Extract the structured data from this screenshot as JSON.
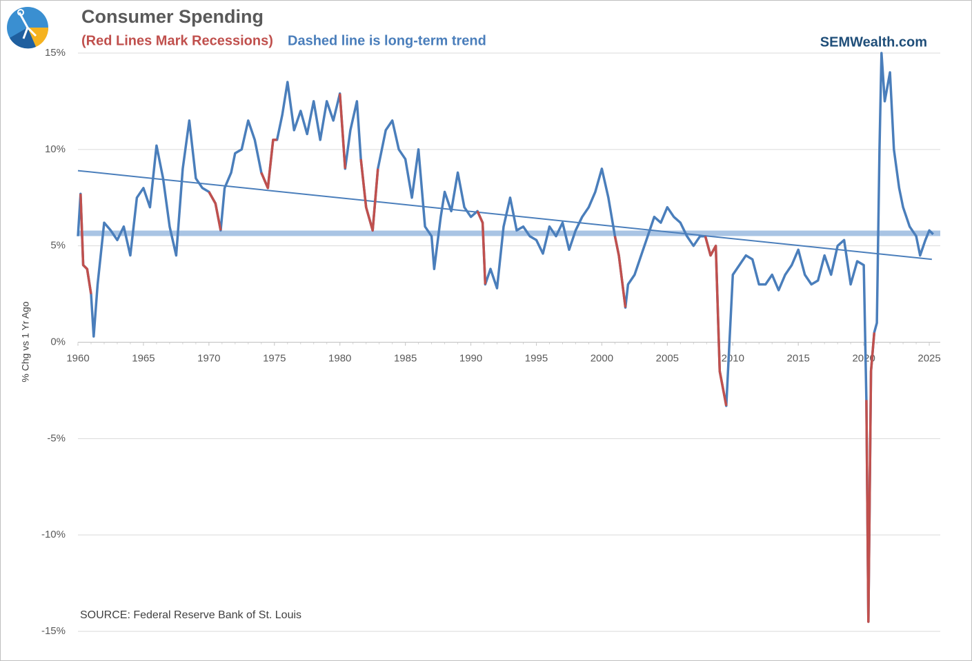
{
  "chart_data": {
    "type": "line",
    "title": "Consumer Spending",
    "subtitle_red": "(Red Lines Mark Recessions)",
    "subtitle_blue": "Dashed line is long-term trend",
    "brand": "SEMWealth.com",
    "ylabel": "% Chg vs 1 Yr Ago",
    "source": "SOURCE:  Federal Reserve Bank of St. Louis",
    "xlim": [
      1960,
      2025.84
    ],
    "xticks": [
      1960,
      1965,
      1970,
      1975,
      1980,
      1985,
      1990,
      1995,
      2000,
      2005,
      2010,
      2015,
      2020,
      2025
    ],
    "ylim": [
      -15,
      15
    ],
    "yticks": [
      {
        "value": 15,
        "label": "15%"
      },
      {
        "value": 10,
        "label": "10%"
      },
      {
        "value": 5,
        "label": "5%"
      },
      {
        "value": 0,
        "label": "0%"
      },
      {
        "value": -5,
        "label": "-5%"
      },
      {
        "value": -10,
        "label": "-10%"
      },
      {
        "value": -15,
        "label": "-15%"
      }
    ],
    "grid": true,
    "x": [
      1960.0,
      1960.2,
      1960.4,
      1960.7,
      1961.0,
      1961.2,
      1961.5,
      1962.0,
      1962.5,
      1963.0,
      1963.5,
      1964.0,
      1964.5,
      1965.0,
      1965.5,
      1966.0,
      1966.5,
      1967.0,
      1967.5,
      1968.0,
      1968.5,
      1969.0,
      1969.5,
      1970.0,
      1970.5,
      1970.9,
      1971.2,
      1971.7,
      1972.0,
      1972.5,
      1973.0,
      1973.5,
      1974.0,
      1974.5,
      1974.9,
      1975.2,
      1975.6,
      1976.0,
      1976.5,
      1977.0,
      1977.5,
      1978.0,
      1978.5,
      1979.0,
      1979.5,
      1980.0,
      1980.4,
      1980.8,
      1981.3,
      1981.6,
      1982.0,
      1982.5,
      1982.9,
      1983.5,
      1984.0,
      1984.5,
      1985.0,
      1985.5,
      1986.0,
      1986.5,
      1987.0,
      1987.2,
      1987.7,
      1988.0,
      1988.5,
      1989.0,
      1989.5,
      1990.0,
      1990.5,
      1990.9,
      1991.1,
      1991.5,
      1992.0,
      1992.5,
      1993.0,
      1993.5,
      1994.0,
      1994.5,
      1995.0,
      1995.5,
      1996.0,
      1996.5,
      1997.0,
      1997.5,
      1998.0,
      1998.5,
      1999.0,
      1999.5,
      2000.0,
      2000.5,
      2001.0,
      2001.3,
      2001.8,
      2002.0,
      2002.5,
      2003.0,
      2003.5,
      2004.0,
      2004.5,
      2005.0,
      2005.5,
      2006.0,
      2006.5,
      2007.0,
      2007.5,
      2007.9,
      2008.3,
      2008.7,
      2009.0,
      2009.5,
      2010.0,
      2010.5,
      2011.0,
      2011.5,
      2012.0,
      2012.5,
      2013.0,
      2013.5,
      2014.0,
      2014.5,
      2015.0,
      2015.5,
      2016.0,
      2016.5,
      2017.0,
      2017.5,
      2018.0,
      2018.5,
      2019.0,
      2019.5,
      2020.0,
      2020.2,
      2020.35,
      2020.55,
      2020.8,
      2021.0,
      2021.2,
      2021.35,
      2021.6,
      2022.0,
      2022.3,
      2022.7,
      2023.0,
      2023.5,
      2024.0,
      2024.3,
      2024.7,
      2025.0,
      2025.3
    ],
    "series": [
      {
        "color": "#4a7ebb",
        "values": [
          5.5,
          7.7,
          4.0,
          3.8,
          2.5,
          0.3,
          3.0,
          6.2,
          5.8,
          5.3,
          6.0,
          4.5,
          7.5,
          8.0,
          7.0,
          10.2,
          8.5,
          6.0,
          4.5,
          9.0,
          11.5,
          8.5,
          8.0,
          7.8,
          7.2,
          5.8,
          8.0,
          8.8,
          9.8,
          10.0,
          11.5,
          10.5,
          8.8,
          8.0,
          10.5,
          10.5,
          11.8,
          13.5,
          11.0,
          12.0,
          10.8,
          12.5,
          10.5,
          12.5,
          11.5,
          12.9,
          9.0,
          11.0,
          12.5,
          9.5,
          7.0,
          5.8,
          9.0,
          11.0,
          11.5,
          10.0,
          9.5,
          7.5,
          10.0,
          6.0,
          5.5,
          3.8,
          6.5,
          7.8,
          6.8,
          8.8,
          7.0,
          6.5,
          6.8,
          6.2,
          3.0,
          3.8,
          2.8,
          6.0,
          7.5,
          5.8,
          6.0,
          5.5,
          5.3,
          4.6,
          6.0,
          5.5,
          6.2,
          4.8,
          5.8,
          6.5,
          7.0,
          7.8,
          9.0,
          7.5,
          5.5,
          4.5,
          1.8,
          3.0,
          3.5,
          4.5,
          5.5,
          6.5,
          6.2,
          7.0,
          6.5,
          6.2,
          5.5,
          5.0,
          5.5,
          5.5,
          4.5,
          5.0,
          -1.5,
          -3.3,
          3.5,
          4.0,
          4.5,
          4.3,
          3.0,
          3.0,
          3.5,
          2.7,
          3.5,
          4.0,
          4.8,
          3.5,
          3.0,
          3.2,
          4.5,
          3.5,
          5.0,
          5.3,
          3.0,
          4.2,
          4.0,
          -3.0,
          -14.5,
          -1.5,
          0.5,
          1.0,
          10.0,
          15.0,
          12.5,
          14.0,
          10.0,
          8.0,
          7.0,
          6.0,
          5.5,
          4.5,
          5.3,
          5.8,
          5.6
        ]
      },
      {
        "color": "#c0504d",
        "values": [
          null,
          7.7,
          4.0,
          3.8,
          2.5,
          null,
          null,
          null,
          null,
          null,
          null,
          null,
          null,
          null,
          null,
          null,
          null,
          null,
          null,
          null,
          null,
          null,
          null,
          7.8,
          7.2,
          5.8,
          null,
          null,
          null,
          null,
          null,
          null,
          8.8,
          8.0,
          10.5,
          10.5,
          null,
          null,
          null,
          null,
          null,
          null,
          null,
          null,
          null,
          12.9,
          9.0,
          null,
          null,
          9.5,
          7.0,
          5.8,
          9.0,
          null,
          null,
          null,
          null,
          null,
          null,
          null,
          null,
          null,
          null,
          null,
          null,
          null,
          null,
          null,
          6.8,
          6.2,
          3.0,
          null,
          null,
          null,
          null,
          null,
          null,
          null,
          null,
          null,
          null,
          null,
          null,
          null,
          null,
          null,
          null,
          null,
          null,
          null,
          5.5,
          4.5,
          1.8,
          null,
          null,
          null,
          null,
          null,
          null,
          null,
          null,
          null,
          null,
          null,
          null,
          5.5,
          4.5,
          5.0,
          -1.5,
          -3.3,
          null,
          null,
          null,
          null,
          null,
          null,
          null,
          null,
          null,
          null,
          null,
          null,
          null,
          null,
          null,
          null,
          null,
          null,
          null,
          null,
          null,
          -3.0,
          -14.5,
          -1.5,
          0.5,
          null,
          null,
          null,
          null,
          null,
          null,
          null,
          null,
          null,
          null,
          null,
          null,
          null,
          null
        ]
      }
    ],
    "trend": {
      "color": "#4a7ebb",
      "x": [
        1960,
        2025.2
      ],
      "values": [
        8.9,
        4.3
      ]
    },
    "average": {
      "color": "#a9c4e4",
      "value": 5.65
    }
  }
}
